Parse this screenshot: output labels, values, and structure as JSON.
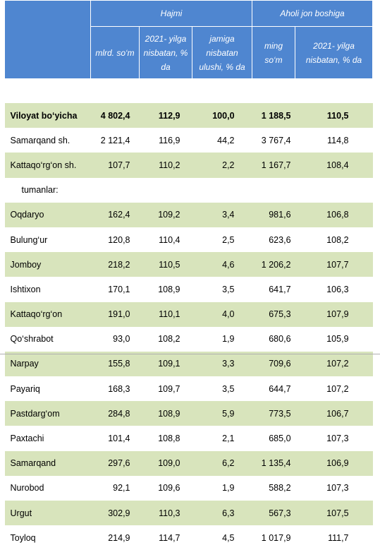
{
  "header": {
    "groups": [
      "Hajmi",
      "Aholi jon boshiga"
    ],
    "columns": [
      "mlrd. so‘m",
      "2021- yilga nisbatan, % da",
      "jamiga nisbatan ulushi, % da",
      "ming so‘m",
      "2021- yilga nisbatan, % da"
    ]
  },
  "table": {
    "rows": [
      [
        "Viloyat bo‘yicha",
        "4 802,4",
        "112,9",
        "100,0",
        "1 188,5",
        "110,5"
      ],
      [
        "Samarqand sh.",
        "2 121,4",
        "116,9",
        "44,2",
        "3 767,4",
        "114,8"
      ],
      [
        "Kattaqo‘rg‘on sh.",
        "107,7",
        "110,2",
        "2,2",
        "1 167,7",
        "108,4"
      ],
      [
        "tumanlar:"
      ],
      [
        "Oqdaryo",
        "162,4",
        "109,2",
        "3,4",
        "981,6",
        "106,8"
      ],
      [
        "Bulung‘ur",
        "120,8",
        "110,4",
        "2,5",
        "623,6",
        "108,2"
      ],
      [
        "Jomboy",
        "218,2",
        "110,5",
        "4,6",
        "1 206,2",
        "107,7"
      ],
      [
        "Ishtixon",
        "170,1",
        "108,9",
        "3,5",
        "641,7",
        "106,3"
      ],
      [
        "Kattaqo‘rg‘on",
        "191,0",
        "110,1",
        "4,0",
        "675,3",
        "107,9"
      ],
      [
        "Qo‘shrabot",
        "93,0",
        "108,2",
        "1,9",
        "680,6",
        "105,9"
      ],
      [
        "Narpay",
        "155,8",
        "109,1",
        "3,3",
        "709,6",
        "107,2"
      ],
      [
        "Payariq",
        "168,3",
        "109,7",
        "3,5",
        "644,7",
        "107,2"
      ],
      [
        "Pastdarg‘om",
        "284,8",
        "108,9",
        "5,9",
        "773,5",
        "106,7"
      ],
      [
        "Paxtachi",
        "101,4",
        "108,8",
        "2,1",
        "685,0",
        "107,3"
      ],
      [
        "Samarqand",
        "297,6",
        "109,0",
        "6,2",
        "1 135,4",
        "106,9"
      ],
      [
        "Nurobod",
        "92,1",
        "109,6",
        "1,9",
        "588,2",
        "107,3"
      ],
      [
        "Urgut",
        "302,9",
        "110,3",
        "6,3",
        "567,3",
        "107,5"
      ],
      [
        "Toyloq",
        "214,9",
        "114,7",
        "4,5",
        "1 017,9",
        "111,7"
      ]
    ]
  }
}
